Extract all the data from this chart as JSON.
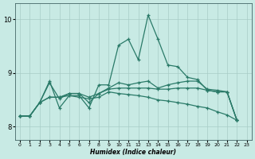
{
  "xlabel": "Humidex (Indice chaleur)",
  "xlim": [
    -0.5,
    23.5
  ],
  "ylim": [
    7.75,
    10.3
  ],
  "yticks": [
    8,
    9,
    10
  ],
  "xticks": [
    0,
    1,
    2,
    3,
    4,
    5,
    6,
    7,
    8,
    9,
    10,
    11,
    12,
    13,
    14,
    15,
    16,
    17,
    18,
    19,
    20,
    21,
    22,
    23
  ],
  "bg_color": "#c8eae4",
  "line_color": "#2a7a68",
  "grid_color": "#a8ccc6",
  "lines": [
    [
      8.2,
      8.2,
      8.45,
      8.85,
      8.35,
      8.58,
      8.58,
      8.35,
      8.78,
      8.78,
      9.52,
      9.63,
      9.25,
      10.08,
      9.63,
      9.15,
      9.12,
      8.92,
      8.88,
      8.68,
      8.65,
      8.65,
      8.12
    ],
    [
      8.2,
      8.2,
      8.45,
      8.82,
      8.52,
      8.62,
      8.62,
      8.45,
      8.62,
      8.72,
      8.82,
      8.78,
      8.82,
      8.85,
      8.72,
      8.78,
      8.82,
      8.85,
      8.85,
      8.7,
      8.68,
      8.65,
      8.12
    ],
    [
      8.2,
      8.2,
      8.45,
      8.55,
      8.55,
      8.62,
      8.62,
      8.55,
      8.62,
      8.7,
      8.72,
      8.72,
      8.72,
      8.72,
      8.7,
      8.7,
      8.72,
      8.72,
      8.72,
      8.68,
      8.65,
      8.65,
      8.12
    ],
    [
      8.2,
      8.2,
      8.45,
      8.55,
      8.55,
      8.58,
      8.55,
      8.52,
      8.55,
      8.65,
      8.62,
      8.6,
      8.58,
      8.55,
      8.5,
      8.48,
      8.45,
      8.42,
      8.38,
      8.35,
      8.28,
      8.22,
      8.12
    ]
  ]
}
